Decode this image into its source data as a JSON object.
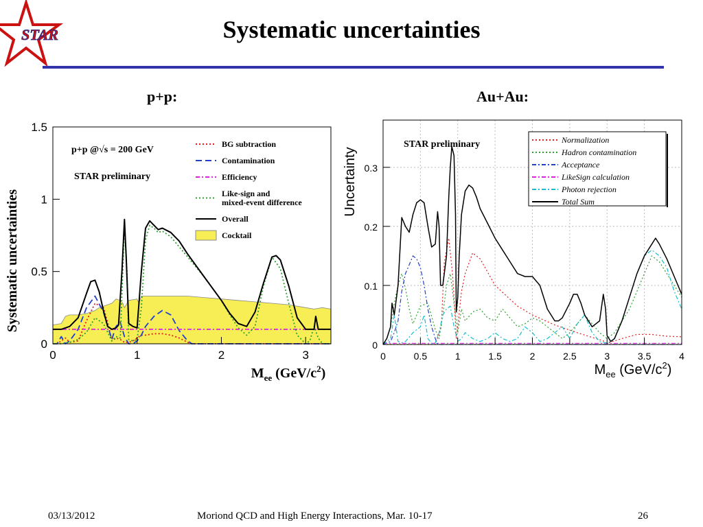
{
  "slide": {
    "logo_text": "STAR",
    "title": "Systematic uncertainties",
    "footer_date": "03/13/2012",
    "footer_text": "Moriond QCD and High Energy Interactions, Mar. 10-17",
    "page_number": "26",
    "accent_color": "#3333aa"
  },
  "chart_data": [
    {
      "type": "line",
      "panel_title": "p+p:",
      "annotation_energy": "p+p @√s = 200 GeV",
      "annotation_preliminary": "STAR preliminary",
      "ylabel": "Systematic uncertainties",
      "xlabel_main": "M",
      "xlabel_sub": "ee",
      "xlabel_units_pre": "(GeV/c",
      "xlabel_units_sup": "2",
      "xlabel_units_post": ")",
      "xlim": [
        0,
        3.3
      ],
      "ylim": [
        0,
        1.5
      ],
      "xticks": [
        "0",
        "1",
        "2",
        "3"
      ],
      "yticks": [
        "0",
        "0.5",
        "1",
        "1.5"
      ],
      "legend_position": "top-right",
      "series": [
        {
          "name": "BG subtraction",
          "color": "#e41a1c",
          "style": "dotted",
          "x": [
            0,
            0.05,
            0.1,
            0.15,
            0.2,
            0.3,
            0.4,
            0.5,
            0.6,
            0.65,
            0.7,
            0.75,
            0.8,
            0.85,
            0.9,
            0.95,
            1.0,
            1.05,
            1.1,
            1.2,
            1.3,
            1.4,
            1.5,
            1.6,
            1.65,
            1.7,
            2.0,
            2.5,
            3.0,
            3.3
          ],
          "y": [
            0,
            0,
            0.02,
            0.04,
            0.01,
            0.02,
            0.16,
            0.28,
            0.25,
            0.15,
            0.02,
            0.04,
            0.03,
            0.01,
            0.01,
            0.02,
            0.04,
            0.06,
            0.06,
            0.07,
            0.07,
            0.06,
            0.04,
            0.01,
            0.0,
            0,
            0,
            0,
            0,
            0
          ]
        },
        {
          "name": "Contamination",
          "color": "#1f3fcf",
          "style": "dashed",
          "x": [
            0,
            0.05,
            0.1,
            0.15,
            0.2,
            0.3,
            0.4,
            0.5,
            0.6,
            0.7,
            0.75,
            0.8,
            0.85,
            0.9,
            0.95,
            1.0,
            1.05,
            1.1,
            1.2,
            1.3,
            1.4,
            1.5,
            1.6,
            1.65,
            1.7,
            2.0,
            2.5,
            3.0,
            3.3
          ],
          "y": [
            0,
            0,
            0.05,
            0.0,
            0.02,
            0.1,
            0.25,
            0.33,
            0.22,
            0.03,
            0.12,
            0.15,
            0.05,
            0.0,
            0.0,
            0.02,
            0.06,
            0.12,
            0.19,
            0.23,
            0.2,
            0.09,
            0.02,
            0.0,
            0,
            0,
            0,
            0,
            0
          ]
        },
        {
          "name": "Efficiency",
          "color": "#e020e0",
          "style": "dashdot",
          "x": [
            0,
            3.3
          ],
          "y": [
            0.1,
            0.1
          ]
        },
        {
          "name": "Like-sign and mixed-event difference",
          "color": "#2ca02c",
          "style": "dotted",
          "x": [
            0,
            0.1,
            0.2,
            0.3,
            0.4,
            0.5,
            0.6,
            0.7,
            0.75,
            0.8,
            0.83,
            0.85,
            0.88,
            0.9,
            0.95,
            1.0,
            1.05,
            1.1,
            1.15,
            1.2,
            1.25,
            1.3,
            1.4,
            1.6,
            1.8,
            2.0,
            2.1,
            2.2,
            2.3,
            2.4,
            2.5,
            2.6,
            2.7,
            2.8,
            2.9,
            3.0,
            3.05,
            3.1,
            3.15,
            3.2,
            3.3
          ],
          "y": [
            0,
            0,
            0.01,
            0.03,
            0.08,
            0.18,
            0.14,
            0.02,
            0.05,
            0.04,
            0.5,
            0.84,
            0.5,
            0.03,
            0.02,
            0.03,
            0.25,
            0.72,
            0.82,
            0.8,
            0.77,
            0.78,
            0.74,
            0.6,
            0.46,
            0.3,
            0.2,
            0.11,
            0.06,
            0.12,
            0.4,
            0.6,
            0.52,
            0.28,
            0.06,
            0.0,
            0.02,
            0.12,
            0.04,
            0.0,
            0
          ]
        },
        {
          "name": "Overall",
          "color": "#000000",
          "style": "solid",
          "x": [
            0,
            0.1,
            0.2,
            0.3,
            0.4,
            0.45,
            0.5,
            0.55,
            0.6,
            0.65,
            0.7,
            0.75,
            0.78,
            0.82,
            0.85,
            0.87,
            0.9,
            0.95,
            1.0,
            1.05,
            1.1,
            1.15,
            1.2,
            1.25,
            1.3,
            1.4,
            1.5,
            1.6,
            1.8,
            2.0,
            2.1,
            2.2,
            2.3,
            2.4,
            2.5,
            2.6,
            2.65,
            2.7,
            2.8,
            2.9,
            3.0,
            3.1,
            3.12,
            3.15,
            3.2,
            3.3
          ],
          "y": [
            0.1,
            0.1,
            0.12,
            0.18,
            0.35,
            0.43,
            0.44,
            0.36,
            0.23,
            0.12,
            0.1,
            0.11,
            0.13,
            0.5,
            0.86,
            0.6,
            0.14,
            0.12,
            0.11,
            0.5,
            0.8,
            0.85,
            0.82,
            0.79,
            0.8,
            0.77,
            0.71,
            0.62,
            0.46,
            0.3,
            0.21,
            0.14,
            0.12,
            0.22,
            0.42,
            0.6,
            0.61,
            0.58,
            0.4,
            0.18,
            0.1,
            0.1,
            0.19,
            0.1,
            0.1,
            0.1
          ]
        },
        {
          "name": "Cocktail",
          "color": "#f7ee55",
          "style": "filled",
          "x": [
            0,
            0.1,
            0.15,
            0.2,
            0.3,
            0.4,
            0.5,
            0.55,
            0.6,
            0.7,
            0.75,
            0.8,
            0.83,
            0.85,
            0.9,
            1.0,
            1.02,
            1.05,
            1.1,
            1.2,
            1.4,
            1.6,
            1.8,
            2.0,
            2.2,
            2.4,
            2.6,
            2.8,
            3.0,
            3.1,
            3.2,
            3.3
          ],
          "y": [
            0.13,
            0.14,
            0.19,
            0.2,
            0.2,
            0.21,
            0.23,
            0.25,
            0.26,
            0.28,
            0.31,
            0.3,
            0.28,
            0.25,
            0.3,
            0.31,
            0.28,
            0.33,
            0.33,
            0.33,
            0.33,
            0.33,
            0.32,
            0.31,
            0.3,
            0.29,
            0.28,
            0.27,
            0.25,
            0.24,
            0.25,
            0.24
          ]
        }
      ]
    },
    {
      "type": "line",
      "panel_title": "Au+Au:",
      "annotation_preliminary": "STAR preliminary",
      "ylabel": "Uncertainty",
      "xlabel_main": "M",
      "xlabel_sub": "ee",
      "xlabel_units_pre": "(GeV/c",
      "xlabel_units_sup": "2",
      "xlabel_units_post": ")",
      "xlim": [
        0,
        4
      ],
      "ylim": [
        0,
        0.38
      ],
      "xticks": [
        "0",
        "0.5",
        "1",
        "1.5",
        "2",
        "2.5",
        "3",
        "3.5",
        "4"
      ],
      "yticks": [
        "0",
        "0.1",
        "0.2",
        "0.3"
      ],
      "grid": true,
      "legend_position": "top-right",
      "series": [
        {
          "name": "Normalization",
          "color": "#e41a1c",
          "style": "dotted",
          "x": [
            0,
            0.3,
            0.5,
            0.7,
            0.78,
            0.82,
            0.88,
            0.93,
            0.96,
            0.98,
            1.0,
            1.05,
            1.1,
            1.2,
            1.3,
            1.5,
            1.8,
            2.0,
            2.3,
            2.6,
            2.8,
            2.95,
            3.0,
            3.05,
            3.2,
            3.4,
            3.6,
            3.8,
            4.0
          ],
          "y": [
            0,
            0,
            0,
            0.0,
            0.03,
            0.14,
            0.18,
            0.12,
            0.06,
            0.01,
            0.03,
            0.09,
            0.12,
            0.155,
            0.145,
            0.1,
            0.065,
            0.05,
            0.033,
            0.02,
            0.012,
            0.006,
            0.002,
            0.004,
            0.01,
            0.017,
            0.017,
            0.014,
            0.013
          ]
        },
        {
          "name": "Hadron contamination",
          "color": "#2ca02c",
          "style": "dotted",
          "x": [
            0,
            0.05,
            0.1,
            0.15,
            0.2,
            0.25,
            0.3,
            0.35,
            0.4,
            0.5,
            0.6,
            0.7,
            0.75,
            0.8,
            0.85,
            0.9,
            0.95,
            1.0,
            1.05,
            1.1,
            1.2,
            1.3,
            1.4,
            1.5,
            1.6,
            1.7,
            1.8,
            1.9,
            2.0,
            2.1,
            2.2,
            2.3,
            2.4,
            2.5,
            2.6,
            2.7,
            2.8,
            2.9,
            3.0,
            3.1,
            3.2,
            3.3,
            3.4,
            3.5,
            3.6,
            3.7,
            3.8,
            3.9,
            4.0
          ],
          "y": [
            0,
            0.01,
            0.03,
            0.07,
            0.1,
            0.12,
            0.095,
            0.06,
            0.035,
            0.065,
            0.07,
            0.025,
            0.01,
            0.05,
            0.1,
            0.12,
            0.07,
            0.02,
            0.06,
            0.04,
            0.055,
            0.06,
            0.045,
            0.04,
            0.06,
            0.045,
            0.03,
            0.035,
            0.045,
            0.04,
            0.03,
            0.02,
            0.01,
            0.02,
            0.035,
            0.05,
            0.035,
            0.02,
            0.01,
            0.02,
            0.04,
            0.06,
            0.09,
            0.12,
            0.15,
            0.14,
            0.12,
            0.1,
            0.08
          ]
        },
        {
          "name": "Acceptance",
          "color": "#1f3fcf",
          "style": "dashdot",
          "x": [
            0,
            0.1,
            0.15,
            0.2,
            0.25,
            0.3,
            0.35,
            0.4,
            0.45,
            0.5,
            0.55,
            0.6,
            0.65,
            0.7,
            0.72,
            0.75,
            1.0,
            2.0,
            3.0,
            4.0
          ],
          "y": [
            0,
            0.005,
            0.02,
            0.04,
            0.09,
            0.12,
            0.135,
            0.15,
            0.145,
            0.13,
            0.1,
            0.06,
            0.03,
            0.01,
            0.002,
            0,
            0,
            0,
            0,
            0
          ]
        },
        {
          "name": "LikeSign calculation",
          "color": "#e020e0",
          "style": "dashdot",
          "x": [
            0,
            0.3,
            0.6,
            1.0,
            1.5,
            2.0,
            2.5,
            3.0,
            3.5,
            4.0
          ],
          "y": [
            0.002,
            0.002,
            0.002,
            0.002,
            0.002,
            0.002,
            0.002,
            0.002,
            0.002,
            0.002
          ]
        },
        {
          "name": "Photon rejection",
          "color": "#17becf",
          "style": "dashdot",
          "x": [
            0,
            0.1,
            0.15,
            0.2,
            0.25,
            0.3,
            0.4,
            0.5,
            0.55,
            0.6,
            0.65,
            0.7,
            0.75,
            0.8,
            0.85,
            0.9,
            0.95,
            1.0,
            1.05,
            1.1,
            1.2,
            1.3,
            1.4,
            1.5,
            1.6,
            1.7,
            1.8,
            1.9,
            2.0,
            2.1,
            2.2,
            2.3,
            2.4,
            2.5,
            2.6,
            2.7,
            2.8,
            2.9,
            3.0,
            3.1,
            3.2,
            3.3,
            3.4,
            3.5,
            3.6,
            3.7,
            3.8,
            3.9,
            4.0
          ],
          "y": [
            0,
            0.01,
            0.05,
            0.005,
            0.003,
            0.005,
            0.02,
            0.03,
            0.05,
            0.01,
            0.002,
            0.003,
            0.02,
            0.05,
            0.06,
            0.065,
            0.03,
            0.005,
            0.01,
            0.02,
            0.01,
            0.005,
            0.01,
            0.02,
            0.01,
            0.005,
            0.01,
            0.03,
            0.02,
            0.005,
            0.01,
            0.02,
            0.03,
            0.01,
            0.035,
            0.05,
            0.02,
            0.005,
            0.002,
            0.01,
            0.04,
            0.08,
            0.12,
            0.15,
            0.16,
            0.15,
            0.13,
            0.09,
            0.06
          ]
        },
        {
          "name": "Total Sum",
          "color": "#000000",
          "style": "solid",
          "x": [
            0,
            0.05,
            0.1,
            0.12,
            0.15,
            0.2,
            0.25,
            0.3,
            0.35,
            0.4,
            0.45,
            0.5,
            0.55,
            0.6,
            0.65,
            0.7,
            0.73,
            0.75,
            0.77,
            0.8,
            0.85,
            0.88,
            0.9,
            0.92,
            0.95,
            0.97,
            0.98,
            1.0,
            1.02,
            1.05,
            1.1,
            1.15,
            1.2,
            1.25,
            1.3,
            1.4,
            1.5,
            1.6,
            1.7,
            1.8,
            1.9,
            2.0,
            2.1,
            2.2,
            2.3,
            2.35,
            2.4,
            2.5,
            2.55,
            2.6,
            2.65,
            2.7,
            2.8,
            2.9,
            2.95,
            2.98,
            3.0,
            3.05,
            3.1,
            3.2,
            3.3,
            3.4,
            3.5,
            3.6,
            3.65,
            3.7,
            3.8,
            3.9,
            4.0
          ],
          "y": [
            0,
            0.01,
            0.03,
            0.07,
            0.05,
            0.1,
            0.215,
            0.2,
            0.19,
            0.22,
            0.24,
            0.245,
            0.24,
            0.2,
            0.165,
            0.17,
            0.225,
            0.2,
            0.1,
            0.1,
            0.15,
            0.25,
            0.3,
            0.335,
            0.32,
            0.22,
            0.055,
            0.08,
            0.15,
            0.22,
            0.26,
            0.27,
            0.265,
            0.25,
            0.23,
            0.205,
            0.18,
            0.16,
            0.14,
            0.12,
            0.115,
            0.115,
            0.1,
            0.06,
            0.04,
            0.04,
            0.045,
            0.07,
            0.085,
            0.085,
            0.07,
            0.05,
            0.03,
            0.04,
            0.085,
            0.06,
            0.015,
            0.005,
            0.01,
            0.04,
            0.08,
            0.12,
            0.15,
            0.17,
            0.18,
            0.17,
            0.145,
            0.115,
            0.085
          ]
        }
      ]
    }
  ]
}
